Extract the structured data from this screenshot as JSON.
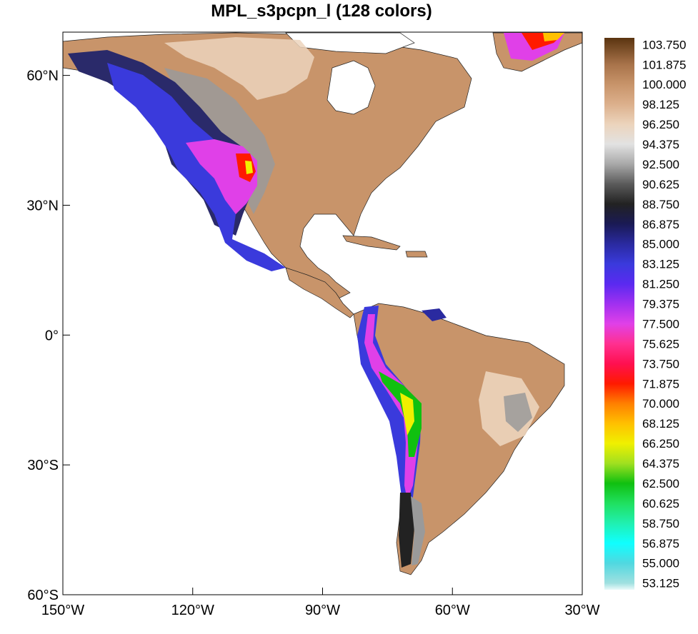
{
  "title": "MPL_s3pcpn_l (128 colors)",
  "map": {
    "projection": "cylindrical-equidistant",
    "lon_range": [
      -150,
      -30
    ],
    "lat_range": [
      -60,
      70
    ],
    "lon_ticks": [
      {
        "value": -150,
        "label": "150°W"
      },
      {
        "value": -120,
        "label": "120°W"
      },
      {
        "value": -90,
        "label": "90°W"
      },
      {
        "value": -60,
        "label": "60°W"
      },
      {
        "value": -30,
        "label": "30°W"
      }
    ],
    "lat_ticks": [
      {
        "value": 60,
        "label": "60°N"
      },
      {
        "value": 30,
        "label": "30°N"
      },
      {
        "value": 0,
        "label": "0°"
      },
      {
        "value": -30,
        "label": "30°S"
      },
      {
        "value": -60,
        "label": "60°S"
      }
    ]
  },
  "colorbar": {
    "min": 52.5,
    "max": 104.375,
    "labels": [
      "103.750",
      "101.875",
      "100.000",
      "98.125",
      "96.250",
      "94.375",
      "92.500",
      "90.625",
      "88.750",
      "86.875",
      "85.000",
      "83.125",
      "81.250",
      "79.375",
      "77.500",
      "75.625",
      "73.750",
      "71.875",
      "70.000",
      "68.125",
      "66.250",
      "64.375",
      "62.500",
      "60.625",
      "58.750",
      "56.875",
      "55.000",
      "53.125"
    ],
    "stops": [
      {
        "value": 104.375,
        "color": "#5a3410"
      },
      {
        "value": 101.875,
        "color": "#a8734a"
      },
      {
        "value": 100.0,
        "color": "#c8946a"
      },
      {
        "value": 98.125,
        "color": "#dcb08c"
      },
      {
        "value": 96.25,
        "color": "#ecd4bc"
      },
      {
        "value": 94.375,
        "color": "#e2e2e2"
      },
      {
        "value": 92.5,
        "color": "#a8a8a8"
      },
      {
        "value": 90.625,
        "color": "#5a5a5a"
      },
      {
        "value": 88.75,
        "color": "#222222"
      },
      {
        "value": 86.875,
        "color": "#1a1a55"
      },
      {
        "value": 85.0,
        "color": "#2a2aa0"
      },
      {
        "value": 83.125,
        "color": "#3a3adc"
      },
      {
        "value": 81.25,
        "color": "#5a2af0"
      },
      {
        "value": 79.375,
        "color": "#a030f0"
      },
      {
        "value": 77.5,
        "color": "#e040e8"
      },
      {
        "value": 75.625,
        "color": "#ff3090"
      },
      {
        "value": 73.75,
        "color": "#ff1050"
      },
      {
        "value": 71.875,
        "color": "#ff1a00"
      },
      {
        "value": 70.0,
        "color": "#ff8000"
      },
      {
        "value": 68.125,
        "color": "#ffc000"
      },
      {
        "value": 66.25,
        "color": "#f0f000"
      },
      {
        "value": 64.375,
        "color": "#a0e020"
      },
      {
        "value": 62.5,
        "color": "#10c010"
      },
      {
        "value": 60.625,
        "color": "#20e060"
      },
      {
        "value": 58.75,
        "color": "#20f0b0"
      },
      {
        "value": 56.875,
        "color": "#10ffff"
      },
      {
        "value": 55.0,
        "color": "#50d8e0"
      },
      {
        "value": 53.125,
        "color": "#a0e0e0"
      },
      {
        "value": 52.5,
        "color": "#eafafa"
      }
    ]
  },
  "colors": {
    "land_default": "#c8946a",
    "land_light": "#ecd4bc",
    "gray": "#9a9a9a",
    "dark": "#2a2a6a",
    "blue": "#3a3adc",
    "magenta": "#e040e8",
    "red": "#ff1a00",
    "yellow": "#f0f000",
    "green": "#10c010",
    "coast": "#222222"
  }
}
